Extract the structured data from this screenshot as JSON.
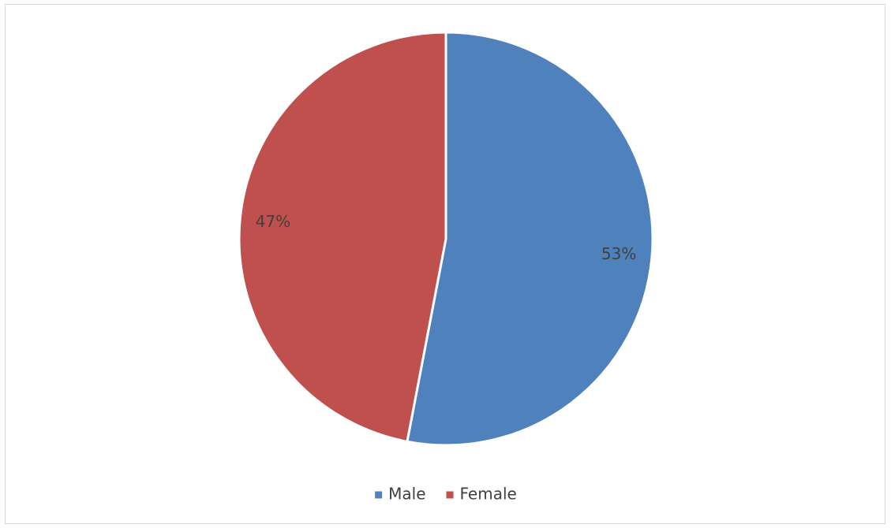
{
  "chart_data": {
    "type": "pie",
    "categories": [
      "Male",
      "Female"
    ],
    "values": [
      53,
      47
    ],
    "value_labels": [
      "53%",
      "47%"
    ],
    "colors": [
      "#4f81bd",
      "#c0504d"
    ],
    "legend": "bottom"
  }
}
